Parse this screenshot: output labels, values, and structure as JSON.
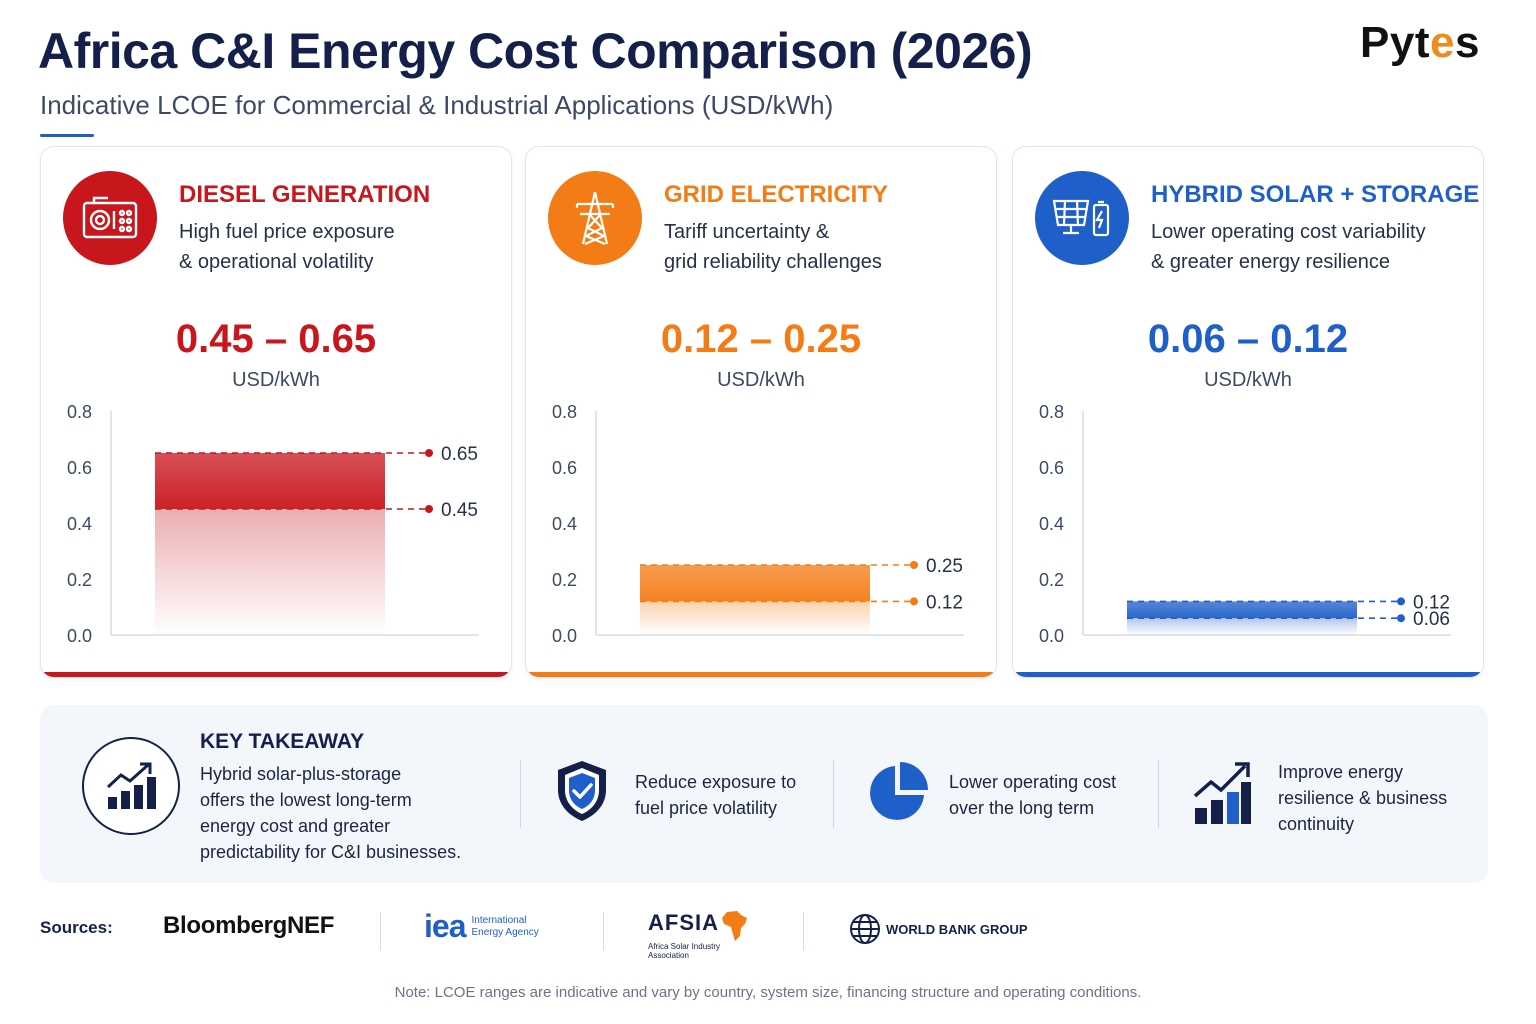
{
  "header": {
    "title": "Africa C&I Energy Cost Comparison (2026)",
    "subtitle": "Indicative LCOE for Commercial & Industrial Applications (USD/kWh)",
    "brand": "Pyt",
    "brand_e": "e",
    "brand_end": "s"
  },
  "colors": {
    "diesel": "#c8161d",
    "grid": "#f47c16",
    "hybrid": "#1f5fc9"
  },
  "chart_data": [
    {
      "type": "bar",
      "title": "DIESEL GENERATION",
      "description": [
        "High fuel price exposure",
        "& operational volatility"
      ],
      "range_label": "0.45 – 0.65",
      "unit": "USD/kWh",
      "low": 0.45,
      "high": 0.65,
      "low_label": "0.45",
      "high_label": "0.65",
      "ylim": [
        0,
        0.8
      ],
      "yticks": [
        "0.8",
        "0.6",
        "0.4",
        "0.2",
        "0.0"
      ],
      "icon": "generator-icon",
      "color": "#c8161d"
    },
    {
      "type": "bar",
      "title": "GRID ELECTRICITY",
      "description": [
        "Tariff uncertainty &",
        "grid reliability challenges"
      ],
      "range_label": "0.12 – 0.25",
      "unit": "USD/kWh",
      "low": 0.12,
      "high": 0.25,
      "low_label": "0.12",
      "high_label": "0.25",
      "ylim": [
        0,
        0.8
      ],
      "yticks": [
        "0.8",
        "0.6",
        "0.4",
        "0.2",
        "0.0"
      ],
      "icon": "transmission-tower-icon",
      "color": "#f47c16"
    },
    {
      "type": "bar",
      "title": "HYBRID SOLAR + STORAGE",
      "description": [
        "Lower operating cost variability",
        "& greater energy resilience"
      ],
      "range_label": "0.06 – 0.12",
      "unit": "USD/kWh",
      "low": 0.06,
      "high": 0.12,
      "low_label": "0.06",
      "high_label": "0.12",
      "ylim": [
        0,
        0.8
      ],
      "yticks": [
        "0.8",
        "0.6",
        "0.4",
        "0.2",
        "0.0"
      ],
      "icon": "solar-battery-icon",
      "color": "#1f5fc9"
    }
  ],
  "takeaway": {
    "title": "KEY TAKEAWAY",
    "text": [
      "Hybrid solar-plus-storage",
      "offers the lowest long-term",
      "energy cost and greater",
      "predictability for C&I businesses."
    ],
    "items": [
      {
        "icon": "shield-check-icon",
        "text": [
          "Reduce exposure to",
          "fuel price volatility"
        ]
      },
      {
        "icon": "pie-chart-icon",
        "text": [
          "Lower operating cost",
          "over the long term"
        ]
      },
      {
        "icon": "growth-chart-icon",
        "text": [
          "Improve energy",
          "resilience & business",
          "continuity"
        ]
      }
    ]
  },
  "sources": {
    "label": "Sources:",
    "bnef": "BloombergNEF",
    "iea_mark": "iea",
    "iea_name": [
      "International",
      "Energy Agency"
    ],
    "afsia_mark": "AFSIA",
    "afsia_name": [
      "Africa Solar Industry",
      "Association"
    ],
    "wbg": "WORLD BANK GROUP"
  },
  "note": "Note: LCOE ranges are indicative and vary by country, system size, financing structure and operating conditions."
}
